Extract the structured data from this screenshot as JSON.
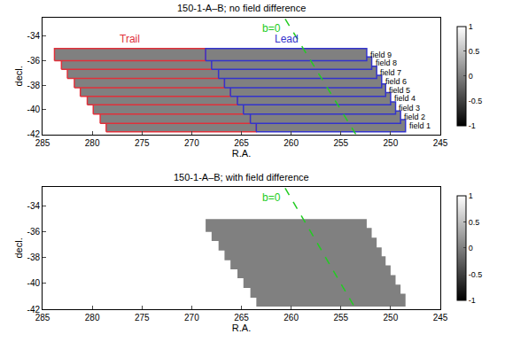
{
  "chart_data": [
    {
      "type": "field_map",
      "title": "150-1-A–B; no field difference",
      "xlabel": "R.A.",
      "ylabel": "decl.",
      "xlim": [
        285,
        245
      ],
      "ylim": [
        -42,
        -32.5
      ],
      "xticks": [
        245,
        250,
        255,
        260,
        265,
        270,
        275,
        280,
        285
      ],
      "yticks": [
        -42,
        -40,
        -38,
        -36,
        -34
      ],
      "grid": false,
      "colorbar": {
        "range": [
          -1,
          1
        ],
        "ticks": [
          -1,
          -0.5,
          0,
          0.5,
          1
        ]
      },
      "series": [
        {
          "name": "Trail",
          "color": "#e0303a"
        },
        {
          "name": "Lead",
          "color": "#3333cc"
        }
      ],
      "line": {
        "name": "b=0",
        "color": "#22cc22",
        "line_style": "dash",
        "x": [
          260.6,
          253.5
        ],
        "y": [
          -32.6,
          -42
        ]
      },
      "fields": [
        {
          "name": "field 1",
          "dec": [
            -41.8,
            -40.8
          ],
          "trail": [
            278.6,
            263.5
          ],
          "lead": [
            263.5,
            248.5
          ],
          "value": 0
        },
        {
          "name": "field 2",
          "dec": [
            -41.1,
            -40.1
          ],
          "trail": [
            279.2,
            264.1
          ],
          "lead": [
            264.1,
            249.0
          ],
          "value": 0
        },
        {
          "name": "field 3",
          "dec": [
            -40.35,
            -39.35
          ],
          "trail": [
            279.9,
            264.8
          ],
          "lead": [
            264.8,
            249.5
          ],
          "value": 0
        },
        {
          "name": "field 4",
          "dec": [
            -39.6,
            -38.6
          ],
          "trail": [
            280.5,
            265.4
          ],
          "lead": [
            265.4,
            250.0
          ],
          "value": 0
        },
        {
          "name": "field 5",
          "dec": [
            -38.9,
            -37.9
          ],
          "trail": [
            281.2,
            266.1
          ],
          "lead": [
            266.1,
            250.5
          ],
          "value": 0
        },
        {
          "name": "field 6",
          "dec": [
            -38.2,
            -37.2
          ],
          "trail": [
            281.8,
            266.7
          ],
          "lead": [
            266.7,
            250.9
          ],
          "value": 0
        },
        {
          "name": "field 7",
          "dec": [
            -37.45,
            -36.45
          ],
          "trail": [
            282.5,
            267.3
          ],
          "lead": [
            267.3,
            251.4
          ],
          "value": 0
        },
        {
          "name": "field 8",
          "dec": [
            -36.7,
            -35.7
          ],
          "trail": [
            283.1,
            268.0
          ],
          "lead": [
            268.0,
            251.9
          ],
          "value": 0
        },
        {
          "name": "field 9",
          "dec": [
            -36.0,
            -35.0
          ],
          "trail": [
            283.8,
            268.6
          ],
          "lead": [
            268.6,
            252.4
          ],
          "value": 0
        }
      ]
    },
    {
      "type": "field_map",
      "title": "150-1-A–B; with field difference",
      "xlabel": "R.A.",
      "ylabel": "decl.",
      "xlim": [
        285,
        245
      ],
      "ylim": [
        -42,
        -32.5
      ],
      "xticks": [
        245,
        250,
        255,
        260,
        265,
        270,
        275,
        280,
        285
      ],
      "yticks": [
        -42,
        -40,
        -38,
        -36,
        -34
      ],
      "grid": false,
      "colorbar": {
        "range": [
          -1,
          1
        ],
        "ticks": [
          -1,
          -0.5,
          0,
          0.5,
          1
        ]
      },
      "line": {
        "name": "b=0",
        "color": "#22cc22",
        "line_style": "dash",
        "x": [
          260.6,
          253.5
        ],
        "y": [
          -32.6,
          -42
        ]
      },
      "fields": [
        {
          "dec": [
            -41.8,
            -40.8
          ],
          "lead": [
            263.5,
            248.5
          ],
          "value": 0
        },
        {
          "dec": [
            -41.1,
            -40.1
          ],
          "lead": [
            264.1,
            249.0
          ],
          "value": 0
        },
        {
          "dec": [
            -40.35,
            -39.35
          ],
          "lead": [
            264.8,
            249.5
          ],
          "value": 0
        },
        {
          "dec": [
            -39.6,
            -38.6
          ],
          "lead": [
            265.4,
            250.0
          ],
          "value": 0
        },
        {
          "dec": [
            -38.9,
            -37.9
          ],
          "lead": [
            266.1,
            250.5
          ],
          "value": 0
        },
        {
          "dec": [
            -38.2,
            -37.2
          ],
          "lead": [
            266.7,
            250.9
          ],
          "value": 0
        },
        {
          "dec": [
            -37.45,
            -36.45
          ],
          "lead": [
            267.3,
            251.4
          ],
          "value": 0
        },
        {
          "dec": [
            -36.7,
            -35.7
          ],
          "lead": [
            268.0,
            251.9
          ],
          "value": 0
        },
        {
          "dec": [
            -36.0,
            -35.0
          ],
          "lead": [
            268.6,
            252.4
          ],
          "value": 0
        }
      ]
    }
  ]
}
